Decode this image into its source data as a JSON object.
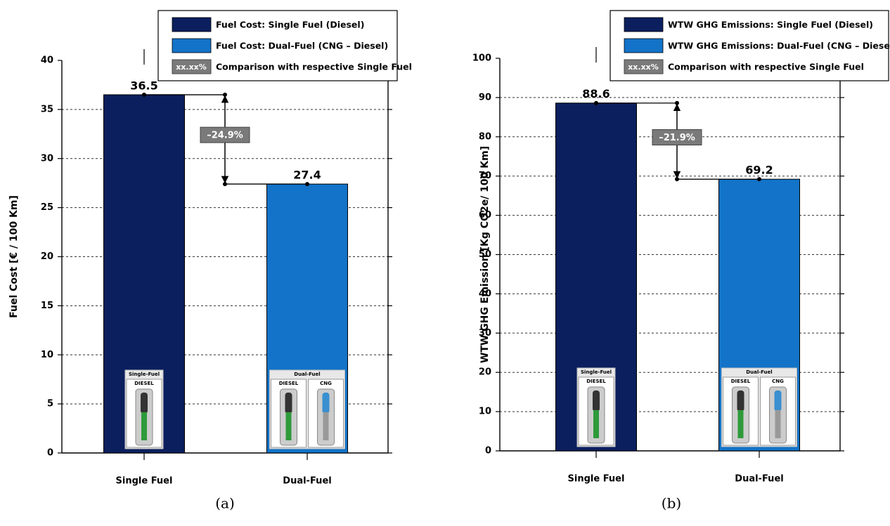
{
  "chart_data": [
    {
      "type": "bar",
      "ylabel": "Fuel Cost [€ / 100 Km]",
      "caption": "(a)",
      "categories": [
        "Single Fuel",
        "Dual-Fuel"
      ],
      "series": [
        {
          "name": "Fuel Cost: Single Fuel (Diesel)",
          "color": "#0b1f5e",
          "values": [
            36.5,
            null
          ]
        },
        {
          "name": "Fuel Cost: Dual-Fuel (CNG – Diesel)",
          "color": "#1273c8",
          "values": [
            null,
            27.4
          ]
        }
      ],
      "comparison_label": "–24.9%",
      "comparison_legend": {
        "box": "xx.xx%",
        "label": "Comparison with respective Single Fuel"
      },
      "pump_labels": [
        {
          "title": "Single-Fuel",
          "nozzles": [
            "DIESEL"
          ]
        },
        {
          "title": "Dual-Fuel",
          "nozzles": [
            "DIESEL",
            "CNG"
          ]
        }
      ],
      "ylim": [
        0,
        40
      ],
      "yticks": [
        0,
        5,
        10,
        15,
        20,
        25,
        30,
        35,
        40
      ],
      "grid": true
    },
    {
      "type": "bar",
      "ylabel": "WTW GHG Emission [Kg CO2e/ 100 Km]",
      "caption": "(b)",
      "categories": [
        "Single Fuel",
        "Dual-Fuel"
      ],
      "series": [
        {
          "name": "WTW GHG Emissions: Single Fuel (Diesel)",
          "color": "#0b1f5e",
          "values": [
            88.6,
            null
          ]
        },
        {
          "name": "WTW GHG Emissions: Dual-Fuel (CNG – Diesel)",
          "color": "#1273c8",
          "values": [
            null,
            69.2
          ]
        }
      ],
      "comparison_label": "–21.9%",
      "comparison_legend": {
        "box": "xx.xx%",
        "label": "Comparison with respective Single Fuel"
      },
      "pump_labels": [
        {
          "title": "Single-Fuel",
          "nozzles": [
            "DIESEL"
          ]
        },
        {
          "title": "Dual-Fuel",
          "nozzles": [
            "DIESEL",
            "CNG"
          ]
        }
      ],
      "ylim": [
        0,
        100
      ],
      "yticks": [
        0,
        10,
        20,
        30,
        40,
        50,
        60,
        70,
        80,
        90,
        100
      ],
      "grid": true
    }
  ]
}
